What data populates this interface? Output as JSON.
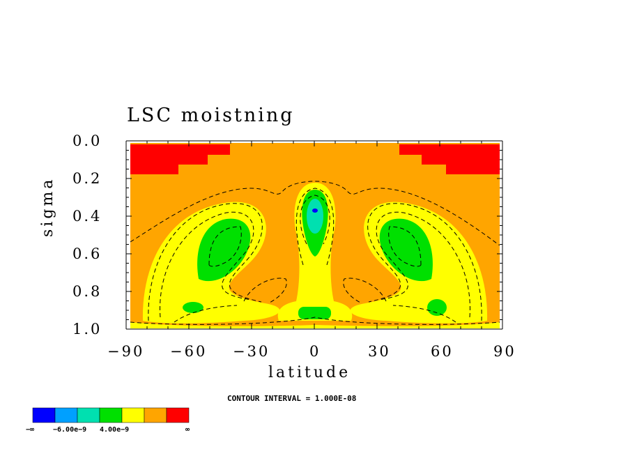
{
  "chart_data": {
    "type": "contour",
    "title": "LSC moistning",
    "xlabel": "latitude",
    "ylabel": "sigma",
    "xlim": [
      -90,
      90
    ],
    "ylim": [
      1.0,
      0.0
    ],
    "x_ticks": [
      "−90",
      "−60",
      "−30",
      "0",
      "30",
      "60",
      "90"
    ],
    "y_ticks": [
      "0.0",
      "0.2",
      "0.4",
      "0.6",
      "0.8",
      "1.0"
    ],
    "contour_interval_text": "CONTOUR INTERVAL = 1.000E-08",
    "colorbar": {
      "colors": [
        "#0000ff",
        "#00a0ff",
        "#00e0b0",
        "#00e000",
        "#ffff00",
        "#ffa500",
        "#ff0000"
      ],
      "labels": [
        "−∞",
        "−6.00e−9",
        "4.00e−9",
        "∞"
      ]
    },
    "regions": [
      {
        "level": "red",
        "color": "#ff0000",
        "description_sigma_range": [
          0.02,
          0.18
        ]
      },
      {
        "level": "orange",
        "color": "#ffa500"
      },
      {
        "level": "yellow",
        "color": "#ffff00"
      },
      {
        "level": "green",
        "color": "#00e000"
      },
      {
        "level": "cyan",
        "color": "#00e0b0"
      },
      {
        "level": "blue",
        "color": "#0000ff"
      }
    ]
  }
}
